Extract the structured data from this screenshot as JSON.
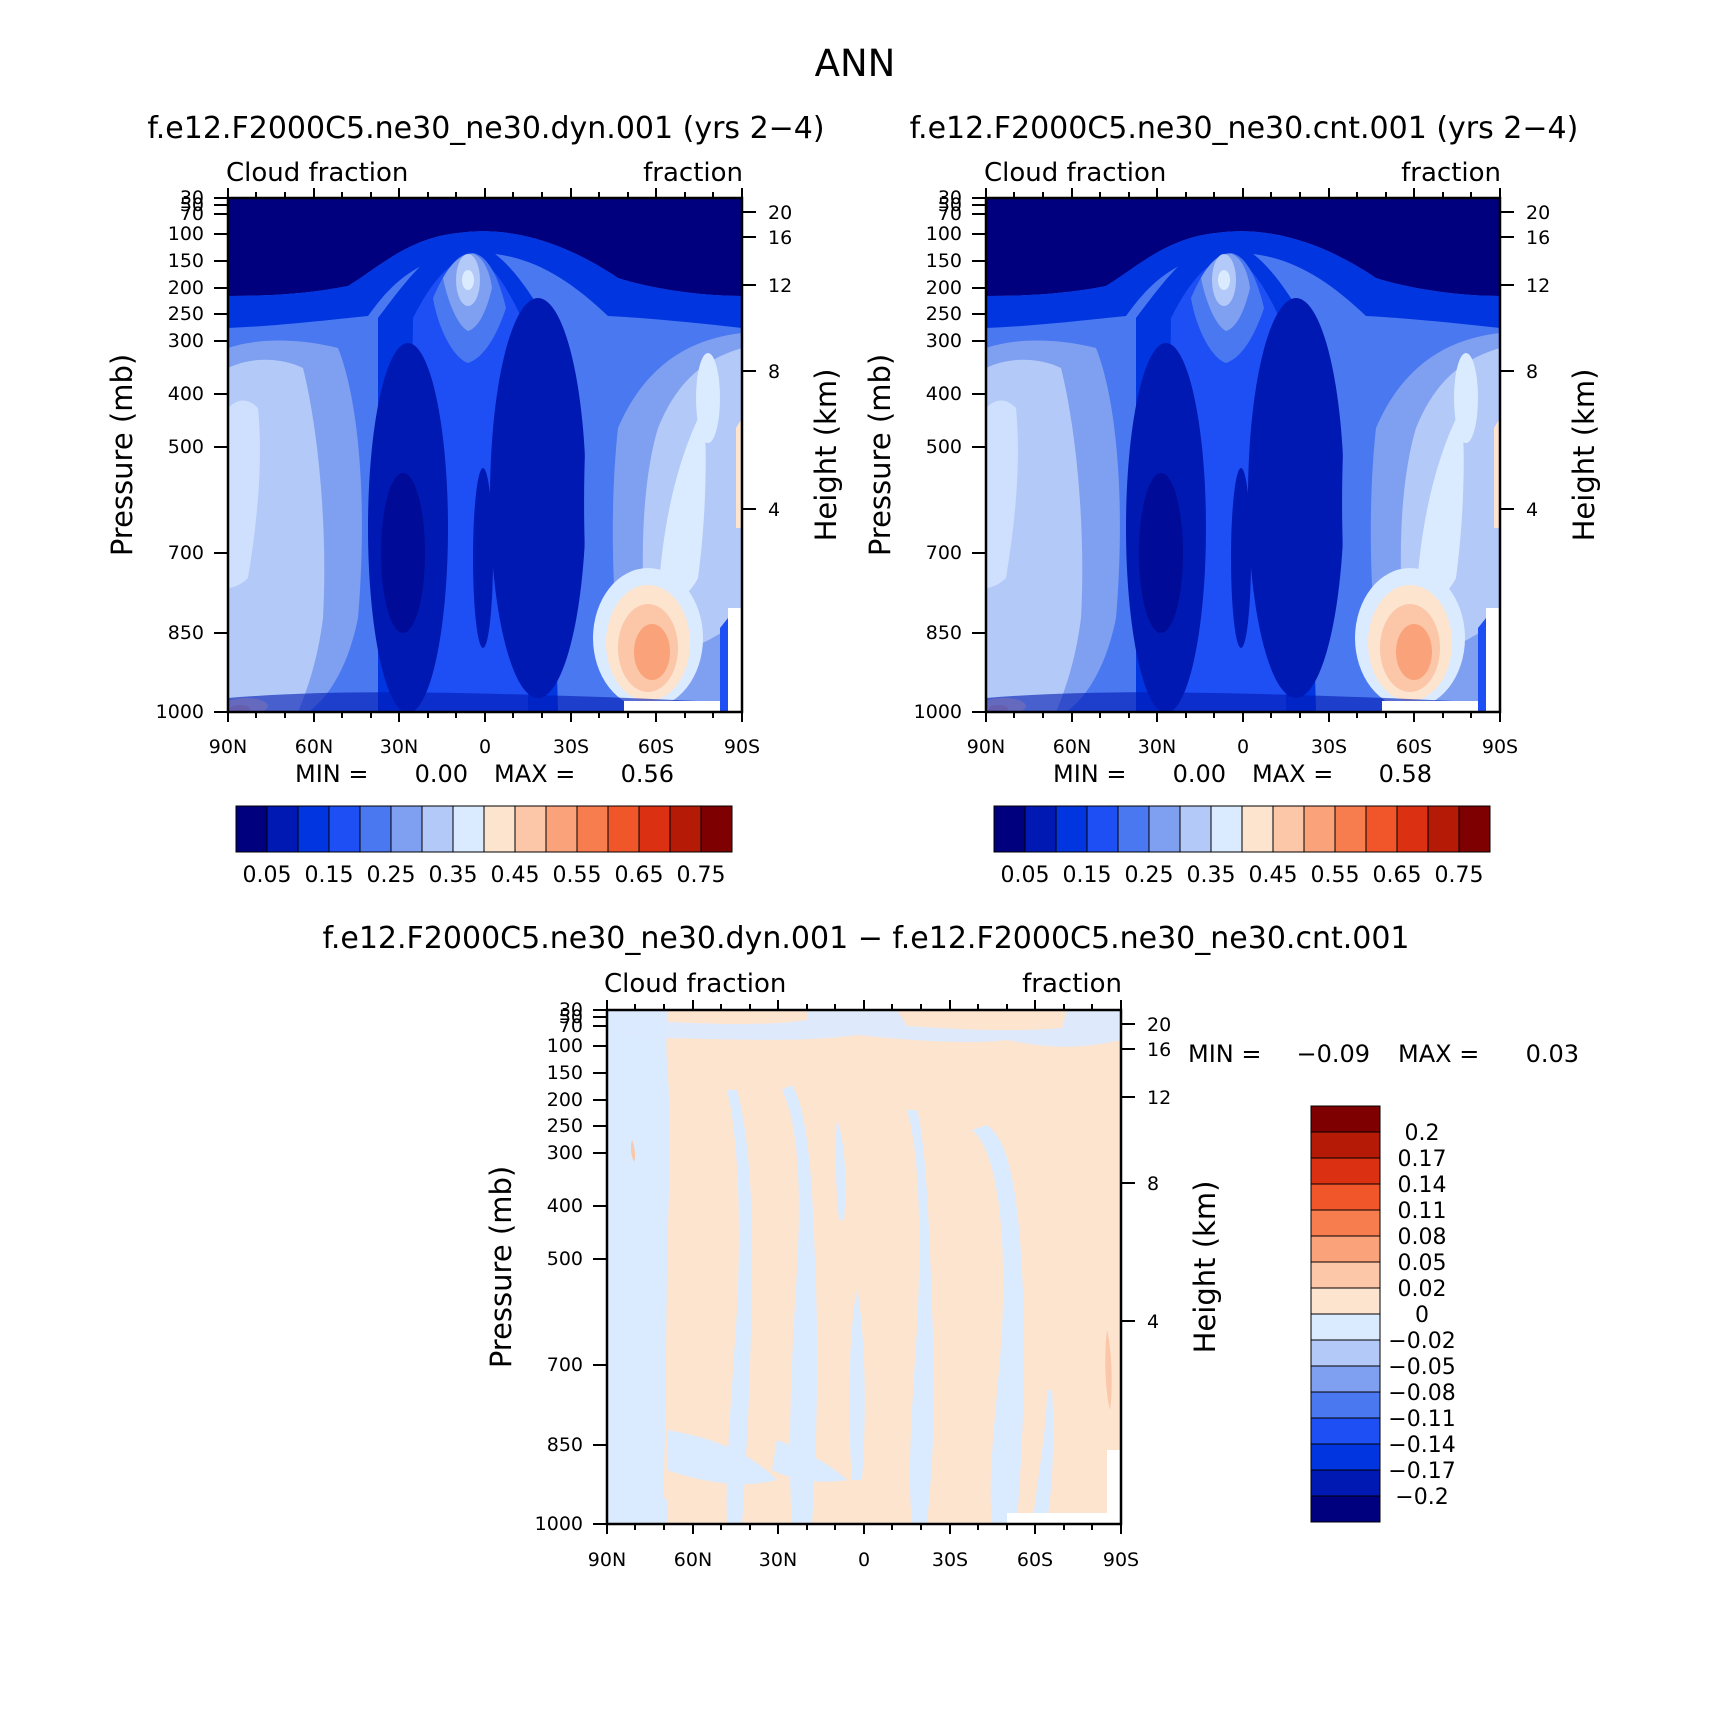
{
  "main_title": "ANN",
  "chart_data": [
    {
      "type": "heatmap",
      "title": "f.e12.F2000C5.ne30_ne30.dyn.001 (yrs 2−4)",
      "left_string": "Cloud fraction",
      "right_string": "fraction",
      "ylabel": "Pressure (mb)",
      "ylabel_right": "Height (km)",
      "x_ticks": [
        "90N",
        "60N",
        "30N",
        "0",
        "30S",
        "60S",
        "90S"
      ],
      "y_ticks": [
        "30",
        "50",
        "70",
        "100",
        "150",
        "200",
        "250",
        "300",
        "400",
        "500",
        "700",
        "850",
        "1000"
      ],
      "y_right_ticks": [
        "20",
        "16",
        "12",
        "8",
        "4"
      ],
      "xlim": [
        90,
        -90
      ],
      "ylim": [
        1000,
        30
      ],
      "y_scale": "log",
      "min_label": "MIN =",
      "min_value": "0.00",
      "max_label": "MAX =",
      "max_value": "0.56",
      "colorbar_orientation": "horizontal",
      "colorbar_labels": [
        "0.05",
        "0.15",
        "0.25",
        "0.35",
        "0.45",
        "0.55",
        "0.65",
        "0.75"
      ],
      "colorbar_colors": [
        "#00007f",
        "#0019b3",
        "#0035e0",
        "#1e4ff5",
        "#4a78f0",
        "#7f9ff0",
        "#b3c9f8",
        "#daeaff",
        "#fde4cf",
        "#fcc6a8",
        "#faa27a",
        "#f77d4f",
        "#f0562a",
        "#dc3012",
        "#b41a06",
        "#7f0000"
      ],
      "features": [
        {
          "x": 22,
          "y": 650,
          "v": 0.02
        },
        {
          "x": -1,
          "y": 200,
          "v": 0.38
        },
        {
          "x": -60,
          "y": 870,
          "v": 0.56
        },
        {
          "x": -65,
          "y": 400,
          "v": 0.36
        },
        {
          "x": 70,
          "y": 500,
          "v": 0.32
        }
      ]
    },
    {
      "type": "heatmap",
      "title": "f.e12.F2000C5.ne30_ne30.cnt.001 (yrs 2−4)",
      "left_string": "Cloud fraction",
      "right_string": "fraction",
      "ylabel": "Pressure (mb)",
      "ylabel_right": "Height (km)",
      "x_ticks": [
        "90N",
        "60N",
        "30N",
        "0",
        "30S",
        "60S",
        "90S"
      ],
      "y_ticks": [
        "30",
        "50",
        "70",
        "100",
        "150",
        "200",
        "250",
        "300",
        "400",
        "500",
        "700",
        "850",
        "1000"
      ],
      "y_right_ticks": [
        "20",
        "16",
        "12",
        "8",
        "4"
      ],
      "xlim": [
        90,
        -90
      ],
      "ylim": [
        1000,
        30
      ],
      "y_scale": "log",
      "min_label": "MIN =",
      "min_value": "0.00",
      "max_label": "MAX =",
      "max_value": "0.58",
      "colorbar_orientation": "horizontal",
      "colorbar_labels": [
        "0.05",
        "0.15",
        "0.25",
        "0.35",
        "0.45",
        "0.55",
        "0.65",
        "0.75"
      ],
      "colorbar_colors": [
        "#00007f",
        "#0019b3",
        "#0035e0",
        "#1e4ff5",
        "#4a78f0",
        "#7f9ff0",
        "#b3c9f8",
        "#daeaff",
        "#fde4cf",
        "#fcc6a8",
        "#faa27a",
        "#f77d4f",
        "#f0562a",
        "#dc3012",
        "#b41a06",
        "#7f0000"
      ],
      "features": [
        {
          "x": 22,
          "y": 650,
          "v": 0.02
        },
        {
          "x": -2,
          "y": 200,
          "v": 0.4
        },
        {
          "x": -58,
          "y": 870,
          "v": 0.58
        },
        {
          "x": -65,
          "y": 400,
          "v": 0.37
        },
        {
          "x": 70,
          "y": 500,
          "v": 0.33
        }
      ]
    },
    {
      "type": "heatmap",
      "title": "f.e12.F2000C5.ne30_ne30.dyn.001 − f.e12.F2000C5.ne30_ne30.cnt.001",
      "left_string": "Cloud fraction",
      "right_string": "fraction",
      "ylabel": "Pressure (mb)",
      "ylabel_right": "Height (km)",
      "x_ticks": [
        "90N",
        "60N",
        "30N",
        "0",
        "30S",
        "60S",
        "90S"
      ],
      "y_ticks": [
        "30",
        "50",
        "70",
        "100",
        "150",
        "200",
        "250",
        "300",
        "400",
        "500",
        "700",
        "850",
        "1000"
      ],
      "y_right_ticks": [
        "20",
        "16",
        "12",
        "8",
        "4"
      ],
      "xlim": [
        90,
        -90
      ],
      "ylim": [
        1000,
        30
      ],
      "y_scale": "log",
      "min_label": "MIN =",
      "min_value": "−0.09",
      "max_label": "MAX =",
      "max_value": "0.03",
      "colorbar_orientation": "vertical",
      "colorbar_labels": [
        "0.2",
        "0.17",
        "0.14",
        "0.11",
        "0.08",
        "0.05",
        "0.02",
        "0",
        "−0.02",
        "−0.05",
        "−0.08",
        "−0.11",
        "−0.14",
        "−0.17",
        "−0.2"
      ],
      "colorbar_colors": [
        "#7f0000",
        "#b41a06",
        "#dc3012",
        "#f0562a",
        "#f77d4f",
        "#faa27a",
        "#fcc6a8",
        "#fde4cf",
        "#daeaff",
        "#b3c9f8",
        "#7f9ff0",
        "#4a78f0",
        "#1e4ff5",
        "#0035e0",
        "#0019b3",
        "#00007f"
      ],
      "features": [
        {
          "x": 75,
          "y": 500,
          "v": -0.02
        },
        {
          "x": 15,
          "y": 400,
          "v": -0.02
        },
        {
          "x": -45,
          "y": 450,
          "v": -0.02
        },
        {
          "x": 87,
          "y": 320,
          "v": 0.02
        },
        {
          "x": -88,
          "y": 760,
          "v": 0.03
        }
      ]
    }
  ]
}
